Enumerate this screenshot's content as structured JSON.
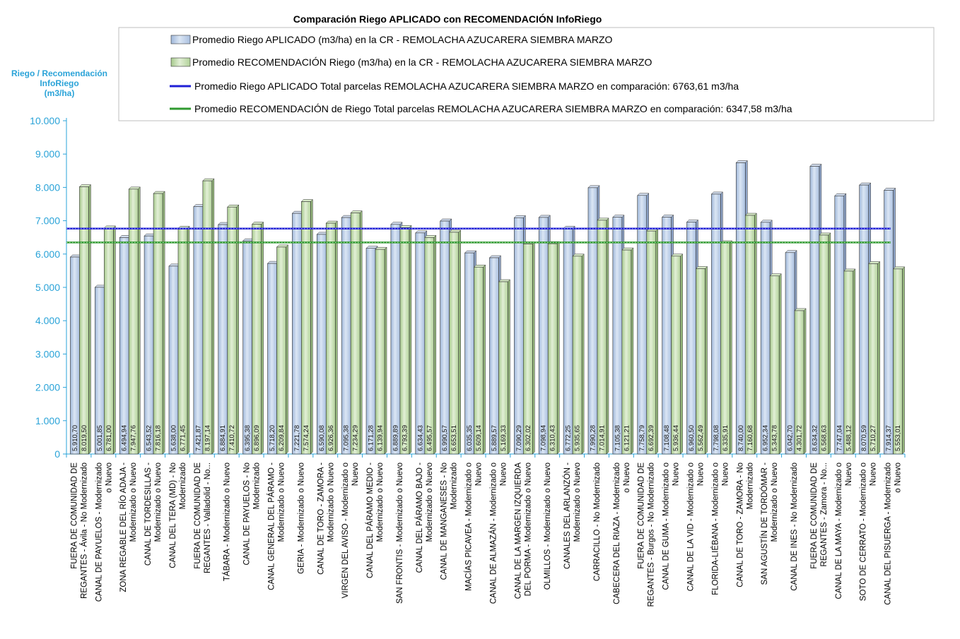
{
  "chart_data": {
    "type": "bar",
    "title": "Comparación Riego APLICADO con RECOMENDACIÓN InfoRiego",
    "ylabel": [
      "Riego / Recomendación",
      "InfoRiego",
      "(m3/ha)"
    ],
    "ylim": [
      0,
      10000
    ],
    "yticks": [
      "0",
      "1.000",
      "2.000",
      "3.000",
      "4.000",
      "5.000",
      "6.000",
      "7.000",
      "8.000",
      "9.000",
      "10.000"
    ],
    "legend_position": "top",
    "categories": [
      [
        "FUERA DE COMUNIDAD DE",
        "REGANTES - Ávila - No Modernizado"
      ],
      [
        "CANAL DE PAYUELOS - Modernizado",
        "o Nuevo"
      ],
      [
        "ZONA REGABLE DEL RÍO ADAJA -",
        "Modernizado o Nuevo"
      ],
      [
        "CANAL DE TORDESILLAS -",
        "Modernizado o Nuevo"
      ],
      [
        "CANAL DEL TERA (MD) - No",
        "Modernizado"
      ],
      [
        "FUERA DE COMUNIDAD DE",
        "REGANTES - Valladolid - No..."
      ],
      [
        "TÁBARA - Modernizado o Nuevo"
      ],
      [
        "CANAL DE PAYUELOS - No",
        "Modernizado"
      ],
      [
        "CANAL GENERAL DEL PÁRAMO -",
        "Modernizado o Nuevo"
      ],
      [
        "GERIA - Modernizado o Nuevo"
      ],
      [
        "CANAL DE TORO - ZAMORA -",
        "Modernizado o Nuevo"
      ],
      [
        "VIRGEN DEL AVISO - Modernizado o",
        "Nuevo"
      ],
      [
        "CANAL DEL PÁRAMO MEDIO -",
        "Modernizado o Nuevo"
      ],
      [
        "SAN FRONTIS - Modernizado o Nuevo"
      ],
      [
        "CANAL DEL PÁRAMO BAJO -",
        "Modernizado o Nuevo"
      ],
      [
        "CANAL DE MANGANESES - No",
        "Modernizado"
      ],
      [
        "MACÍAS PICAVEA - Modernizado o",
        "Nuevo"
      ],
      [
        "CANAL DE ALMAZÁN - Modernizado o",
        "Nuevo"
      ],
      [
        "CANAL DE LA MARGEN IZQUIERDA",
        "DEL PORMA - Modernizado o Nuevo"
      ],
      [
        "OLMILLOS - Modernizado o Nuevo"
      ],
      [
        "CANALES DEL ARLANZÓN -",
        "Modernizado o Nuevo"
      ],
      [
        "CARRACILLO - No Modernizado"
      ],
      [
        "CABECERA DEL RIAZA - Modernizado",
        "o Nuevo"
      ],
      [
        "FUERA DE COMUNIDAD DE",
        "REGANTES - Burgos - No Modernizado"
      ],
      [
        "CANAL DE GUMA - Modernizado o",
        "Nuevo"
      ],
      [
        "CANAL DE LA VID - Modernizado o",
        "Nuevo"
      ],
      [
        "FLORIDA-LIÉBANA - Modernizado o",
        "Nuevo"
      ],
      [
        "CANAL DE TORO - ZAMORA - No",
        "Modernizado"
      ],
      [
        "SAN AGUSTÍN DE TORDÓMAR -",
        "Modernizado o Nuevo"
      ],
      [
        "CANAL DE INES - No Modernizado"
      ],
      [
        "FUERA DE COMUNIDAD DE",
        "REGANTES - Zamora - No..."
      ],
      [
        "CANAL DE LA MAYA - Modernizado o",
        "Nuevo"
      ],
      [
        "SOTO DE CERRATO - Modernizado o",
        "Nuevo"
      ],
      [
        "CANAL DEL PISUERGA - Modernizado",
        "o Nuevo"
      ]
    ],
    "series": [
      {
        "name": "Promedio Riego APLICADO (m3/ha) en la CR - REMOLACHA AZUCARERA SIEMBRA MARZO",
        "color": "#b8cce4",
        "values": [
          5910.7,
          5001.85,
          6494.94,
          6543.52,
          5638.0,
          7421.87,
          6884.91,
          6395.38,
          5718.2,
          7221.78,
          6590.08,
          7095.38,
          6171.28,
          6889.89,
          6634.43,
          6990.57,
          6035.35,
          5889.57,
          7090.29,
          7098.94,
          6772.25,
          7990.28,
          7105.38,
          7758.79,
          7108.48,
          6960.5,
          7798.08,
          8740.0,
          6952.34,
          6042.7,
          8634.32,
          7747.04,
          8070.59,
          7914.37
        ],
        "labels": [
          "5.910,70",
          "5.001,85",
          "6.494,94",
          "6.543,52",
          "5.638,00",
          "7.421,87",
          "6.884,91",
          "6.395,38",
          "5.718,20",
          "7.221,78",
          "6.590,08",
          "7.095,38",
          "6.171,28",
          "6.889,89",
          "6.634,43",
          "6.990,57",
          "6.035,35",
          "5.889,57",
          "7.090,29",
          "7.098,94",
          "6.772,25",
          "7.990,28",
          "7.105,38",
          "7.758,79",
          "7.108,48",
          "6.960,50",
          "7.798,08",
          "8.740,00",
          "6.952,34",
          "6.042,70",
          "8.634,32",
          "7.747,04",
          "8.070,59",
          "7.914,37"
        ]
      },
      {
        "name": "Promedio RECOMENDACIÓN Riego (m3/ha) en la CR - REMOLACHA AZUCARERA SIEMBRA MARZO",
        "color": "#c4deb0",
        "values": [
          8019.5,
          6781.0,
          7947.76,
          7816.18,
          6771.45,
          8197.14,
          7410.72,
          6896.09,
          6209.84,
          7574.24,
          6926.36,
          7234.29,
          6139.94,
          6793.39,
          6495.57,
          6653.51,
          5609.14,
          5169.33,
          6302.02,
          6310.43,
          5935.65,
          7014.91,
          6121.21,
          6692.39,
          5936.44,
          5562.49,
          6335.91,
          7160.68,
          5343.78,
          4301.72,
          6568.63,
          5488.12,
          5710.27,
          5553.01
        ],
        "labels": [
          "8.019,50",
          "6.781,00",
          "7.947,76",
          "7.816,18",
          "6.771,45",
          "8.197,14",
          "7.410,72",
          "6.896,09",
          "6.209,84",
          "7.574,24",
          "6.926,36",
          "7.234,29",
          "6.139,94",
          "6.793,39",
          "6.495,57",
          "6.653,51",
          "5.609,14",
          "5.169,33",
          "6.302,02",
          "6.310,43",
          "5.935,65",
          "7.014,91",
          "6.121,21",
          "6.692,39",
          "5.936,44",
          "5.562,49",
          "6.335,91",
          "7.160,68",
          "5.343,78",
          "4.301,72",
          "6.568,63",
          "5.488,12",
          "5.710,27",
          "5.553,01"
        ]
      }
    ],
    "reference_lines": [
      {
        "name": "Promedio Riego APLICADO Total parcelas REMOLACHA AZUCARERA SIEMBRA MARZO en comparación: 6763,61 m3/ha",
        "value": 6763.61,
        "color": "#1f1fd6"
      },
      {
        "name": "Promedio RECOMENDACIÓN de Riego Total parcelas REMOLACHA AZUCARERA SIEMBRA MARZO en comparación: 6347,58 m3/ha",
        "value": 6347.58,
        "color": "#2f9a2f"
      }
    ]
  }
}
